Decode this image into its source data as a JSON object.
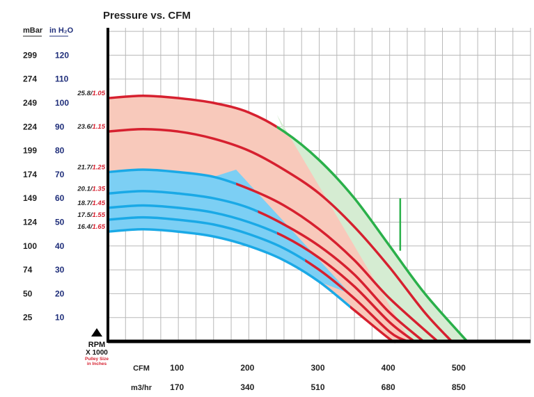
{
  "chart_data": {
    "type": "line",
    "title": "Pressure vs. CFM",
    "y_axis": {
      "unit_mbar": "mBar",
      "unit_inh2o": "in H₂O",
      "inh2o_ticks": [
        120,
        110,
        100,
        90,
        80,
        70,
        60,
        50,
        40,
        30,
        20,
        10
      ],
      "mbar_ticks": [
        299,
        274,
        249,
        224,
        199,
        174,
        149,
        124,
        100,
        74,
        50,
        25
      ],
      "ylim": [
        0,
        130
      ]
    },
    "x_axis": {
      "cfm_label": "CFM",
      "cfm_ticks": [
        100,
        200,
        300,
        400,
        500
      ],
      "m3hr_label": "m3/hr",
      "m3hr_ticks": [
        170,
        340,
        510,
        680,
        850
      ],
      "xlim": [
        0,
        600
      ]
    },
    "rpm_legend": {
      "line1": "RPM",
      "line2": "X 1000",
      "line3": "Pulley Size",
      "line4": "in Inches"
    },
    "grid": true,
    "colors": {
      "red": "#d6202f",
      "green": "#2ab04a",
      "blue": "#1aa9e6",
      "pink_fill": "#f8c9bb",
      "green_fill": "#d5ecd2",
      "blue_fill": "#7ccff4",
      "grid": "#b8b8b8",
      "label_blue": "#1f2e7a",
      "label_red": "#d6202f"
    },
    "series": [
      {
        "rpm": "25.8",
        "pulley": "1.05",
        "x": [
          0,
          50,
          100,
          150,
          200,
          250,
          300,
          350,
          400,
          450,
          510
        ],
        "y": [
          102,
          103,
          102,
          100,
          96,
          88,
          76,
          60,
          40,
          20,
          0
        ]
      },
      {
        "rpm": "23.6",
        "pulley": "1.15",
        "x": [
          0,
          50,
          100,
          150,
          200,
          250,
          300,
          350,
          400,
          450,
          488
        ],
        "y": [
          88,
          89,
          88,
          85,
          80,
          72,
          62,
          48,
          31,
          12,
          0
        ]
      },
      {
        "rpm": "21.7",
        "pulley": "1.25",
        "x": [
          0,
          50,
          100,
          150,
          200,
          250,
          300,
          350,
          400,
          468
        ],
        "y": [
          71,
          72,
          71,
          69,
          64,
          57,
          47,
          34,
          18,
          0
        ]
      },
      {
        "rpm": "20.1",
        "pulley": "1.35",
        "x": [
          0,
          50,
          100,
          150,
          200,
          250,
          300,
          350,
          400,
          448
        ],
        "y": [
          62,
          63,
          62,
          60,
          56,
          49,
          40,
          28,
          12,
          0
        ]
      },
      {
        "rpm": "18.7",
        "pulley": "1.45",
        "x": [
          0,
          50,
          100,
          150,
          200,
          250,
          300,
          350,
          400,
          435
        ],
        "y": [
          56,
          57,
          56,
          54,
          50,
          44,
          35,
          23,
          8,
          0
        ]
      },
      {
        "rpm": "17.5",
        "pulley": "1.55",
        "x": [
          0,
          50,
          100,
          150,
          200,
          250,
          300,
          350,
          400,
          425
        ],
        "y": [
          51,
          52,
          51,
          49,
          45,
          39,
          30,
          18,
          4,
          0
        ]
      },
      {
        "rpm": "16.4",
        "pulley": "1.65",
        "x": [
          0,
          50,
          100,
          150,
          200,
          250,
          300,
          350,
          400,
          410
        ],
        "y": [
          46,
          47,
          46,
          44,
          40,
          34,
          25,
          13,
          1,
          0
        ]
      }
    ]
  }
}
